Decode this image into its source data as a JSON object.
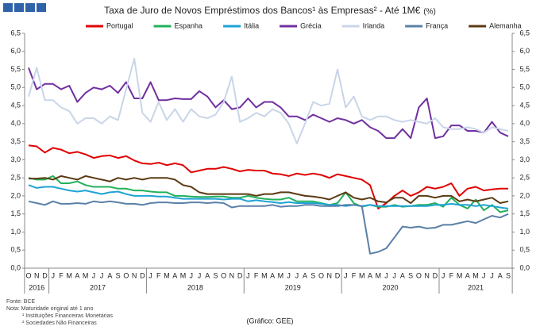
{
  "chart_data": {
    "type": "line",
    "title": "Taxa de Juro de Novos Empréstimos dos Bancos¹ às Empresas² - Até 1M€",
    "unit": "(%)",
    "categories": [
      "O",
      "N",
      "D",
      "J",
      "F",
      "M",
      "A",
      "M",
      "J",
      "J",
      "A",
      "S",
      "O",
      "N",
      "D",
      "J",
      "F",
      "M",
      "A",
      "M",
      "J",
      "J",
      "A",
      "S",
      "O",
      "N",
      "D",
      "J",
      "F",
      "M",
      "A",
      "M",
      "J",
      "J",
      "A",
      "S",
      "O",
      "N",
      "D",
      "J",
      "F",
      "M",
      "A",
      "M",
      "J",
      "J",
      "A",
      "S",
      "O",
      "N",
      "D",
      "J",
      "F",
      "M",
      "A",
      "M",
      "J",
      "J",
      "A",
      "S"
    ],
    "year_groups": [
      "2016",
      "2017",
      "2018",
      "2019",
      "2020",
      "2021"
    ],
    "ylim": [
      0,
      6.5
    ],
    "yticks": [
      {
        "value": 0,
        "label": "0,0"
      },
      {
        "value": 0.5,
        "label": "0,5"
      },
      {
        "value": 1,
        "label": "1,0"
      },
      {
        "value": 1.5,
        "label": "1,5"
      },
      {
        "value": 2,
        "label": "2,0"
      },
      {
        "value": 2.5,
        "label": "2,5"
      },
      {
        "value": 3,
        "label": "3,0"
      },
      {
        "value": 3.5,
        "label": "3,5"
      },
      {
        "value": 4,
        "label": "4,0"
      },
      {
        "value": 4.5,
        "label": "4,5"
      },
      {
        "value": 5,
        "label": "5,0"
      },
      {
        "value": 5.5,
        "label": "5,5"
      },
      {
        "value": 6,
        "label": "6,0"
      },
      {
        "value": 6.5,
        "label": "6,5"
      }
    ],
    "series": [
      {
        "name": "Portugal",
        "color": "#e00000",
        "values": [
          3.4,
          3.37,
          3.2,
          3.33,
          3.28,
          3.18,
          3.22,
          3.15,
          3.05,
          3.1,
          3.12,
          3.05,
          3.1,
          2.98,
          2.9,
          2.88,
          2.92,
          2.85,
          2.9,
          2.85,
          2.65,
          2.7,
          2.75,
          2.75,
          2.8,
          2.75,
          2.68,
          2.72,
          2.7,
          2.7,
          2.62,
          2.6,
          2.55,
          2.62,
          2.58,
          2.62,
          2.58,
          2.5,
          2.6,
          2.55,
          2.5,
          2.45,
          2.3,
          1.65,
          1.8,
          2.0,
          2.15,
          2.0,
          2.1,
          2.25,
          2.2,
          2.25,
          2.35,
          2.0,
          2.2,
          2.25,
          2.15,
          2.18,
          2.2,
          2.2
        ]
      },
      {
        "name": "Espanha",
        "color": "#22b15a",
        "values": [
          2.5,
          2.45,
          2.45,
          2.55,
          2.35,
          2.35,
          2.4,
          2.3,
          2.25,
          2.25,
          2.25,
          2.2,
          2.2,
          2.15,
          2.15,
          2.12,
          2.1,
          2.1,
          2.0,
          2.0,
          1.98,
          1.97,
          1.97,
          1.98,
          1.98,
          1.95,
          1.95,
          2.0,
          1.95,
          1.92,
          1.9,
          1.9,
          1.95,
          1.85,
          1.85,
          1.85,
          1.8,
          1.75,
          1.8,
          2.1,
          1.8,
          1.7,
          1.75,
          1.7,
          1.7,
          1.75,
          1.7,
          1.72,
          1.75,
          1.75,
          1.8,
          1.7,
          1.95,
          1.75,
          1.65,
          1.9,
          1.6,
          1.75,
          1.55,
          1.6
        ]
      },
      {
        "name": "Itália",
        "color": "#1fa3d6",
        "values": [
          2.3,
          2.22,
          2.25,
          2.25,
          2.2,
          2.15,
          2.12,
          2.15,
          2.1,
          2.05,
          2.1,
          2.12,
          2.05,
          2.0,
          2.0,
          2.0,
          1.98,
          1.98,
          1.95,
          1.92,
          1.92,
          1.92,
          1.92,
          1.92,
          1.9,
          1.92,
          1.92,
          1.85,
          1.88,
          1.85,
          1.83,
          1.8,
          1.83,
          1.8,
          1.8,
          1.8,
          1.78,
          1.75,
          1.75,
          1.72,
          1.75,
          1.72,
          1.75,
          1.72,
          1.72,
          1.72,
          1.72,
          1.72,
          1.72,
          1.72,
          1.75,
          1.75,
          1.78,
          1.75,
          1.75,
          1.72,
          1.75,
          1.72,
          1.68,
          1.65
        ]
      },
      {
        "name": "Grécia",
        "color": "#7030a0",
        "values": [
          5.55,
          4.95,
          5.1,
          5.1,
          4.95,
          5.05,
          4.6,
          4.85,
          5.0,
          4.95,
          5.05,
          4.85,
          5.15,
          4.7,
          4.7,
          5.15,
          4.65,
          4.65,
          4.7,
          4.68,
          4.68,
          4.9,
          4.75,
          4.45,
          4.65,
          4.4,
          4.45,
          4.7,
          4.45,
          4.6,
          4.6,
          4.45,
          4.2,
          4.2,
          4.1,
          4.25,
          4.15,
          4.05,
          4.15,
          4.1,
          4.0,
          4.1,
          3.9,
          3.8,
          3.6,
          3.6,
          3.85,
          3.6,
          4.45,
          4.7,
          3.6,
          3.65,
          3.95,
          3.95,
          3.8,
          3.8,
          3.75,
          4.05,
          3.75,
          3.65
        ]
      },
      {
        "name": "Irlanda",
        "color": "#c9d5e8",
        "values": [
          4.75,
          5.55,
          4.65,
          4.65,
          4.45,
          4.35,
          4.0,
          4.15,
          4.15,
          4.0,
          4.2,
          4.1,
          4.95,
          5.8,
          4.3,
          4.05,
          4.6,
          4.1,
          4.4,
          4.05,
          4.4,
          4.2,
          4.15,
          4.25,
          4.6,
          5.3,
          4.05,
          4.15,
          4.3,
          4.2,
          4.4,
          4.3,
          4.0,
          3.45,
          4.0,
          4.6,
          4.5,
          4.55,
          5.5,
          4.45,
          4.75,
          4.2,
          4.1,
          4.2,
          4.2,
          4.1,
          4.05,
          4.1,
          4.05,
          4.0,
          4.15,
          3.9,
          3.85,
          3.85,
          3.9,
          3.85,
          3.75,
          3.9,
          3.85,
          3.8
        ]
      },
      {
        "name": "França",
        "color": "#5b80a8",
        "values": [
          1.85,
          1.8,
          1.75,
          1.85,
          1.78,
          1.78,
          1.8,
          1.78,
          1.85,
          1.82,
          1.85,
          1.82,
          1.78,
          1.78,
          1.75,
          1.8,
          1.82,
          1.82,
          1.8,
          1.8,
          1.82,
          1.82,
          1.8,
          1.82,
          1.8,
          1.68,
          1.72,
          1.72,
          1.72,
          1.72,
          1.75,
          1.7,
          1.72,
          1.72,
          1.75,
          1.75,
          1.72,
          1.72,
          1.72,
          1.75,
          1.75,
          1.72,
          0.4,
          0.45,
          0.55,
          0.85,
          1.15,
          1.12,
          1.15,
          1.1,
          1.12,
          1.2,
          1.2,
          1.25,
          1.3,
          1.25,
          1.35,
          1.45,
          1.4,
          1.5
        ]
      },
      {
        "name": "Alemanha",
        "color": "#5c3a12",
        "values": [
          2.48,
          2.48,
          2.5,
          2.45,
          2.55,
          2.5,
          2.45,
          2.55,
          2.5,
          2.45,
          2.4,
          2.5,
          2.45,
          2.5,
          2.45,
          2.5,
          2.5,
          2.5,
          2.45,
          2.3,
          2.25,
          2.1,
          2.05,
          2.05,
          2.05,
          2.05,
          2.05,
          2.05,
          2.0,
          2.05,
          2.05,
          2.1,
          2.1,
          2.05,
          2.0,
          1.98,
          1.95,
          1.9,
          2.0,
          2.1,
          1.95,
          1.9,
          1.95,
          1.85,
          1.82,
          1.95,
          1.95,
          1.8,
          2.0,
          2.0,
          1.95,
          2.0,
          2.0,
          1.85,
          1.9,
          1.85,
          1.9,
          1.95,
          1.8,
          1.85
        ]
      }
    ],
    "notes": [
      "Fonte: BCE",
      "Nota: Maturidade original até 1 ano",
      "¹ Instituições Financeiras Monetárias",
      "² Sociedades Não Financeiras"
    ],
    "credit": "(Gráfico: GEE)"
  }
}
